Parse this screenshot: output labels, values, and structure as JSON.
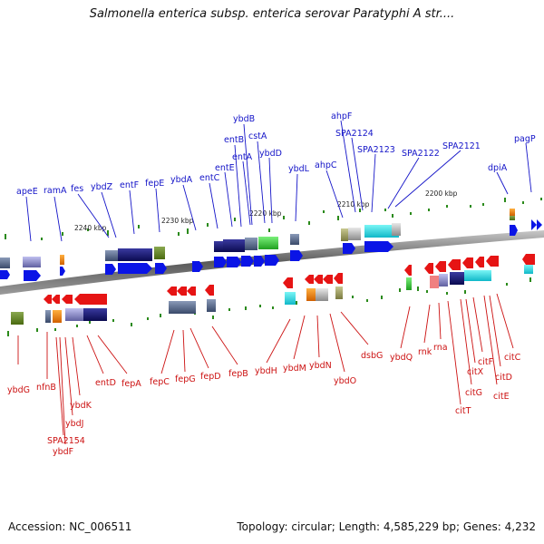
{
  "header": {
    "title": "Salmonella enterica subsp. enterica serovar Paratyphi A str...."
  },
  "footer": {
    "accession": "Accession: NC_006511",
    "summary": "Topology: circular; Length: 4,585,229 bp; Genes: 4,232"
  },
  "ruler": {
    "ticks": [
      {
        "label": "2240 kbp"
      },
      {
        "label": "2230 kbp"
      },
      {
        "label": "2220 kbp"
      },
      {
        "label": "2210 kbp"
      },
      {
        "label": "2200 kbp"
      }
    ]
  },
  "genes_top": [
    {
      "name": "apeE"
    },
    {
      "name": "ramA"
    },
    {
      "name": "fes"
    },
    {
      "name": "ybdZ"
    },
    {
      "name": "entF"
    },
    {
      "name": "fepE"
    },
    {
      "name": "ybdA"
    },
    {
      "name": "entC"
    },
    {
      "name": "entE"
    },
    {
      "name": "entB"
    },
    {
      "name": "entA"
    },
    {
      "name": "ybdB"
    },
    {
      "name": "cstA"
    },
    {
      "name": "ybdD"
    },
    {
      "name": "ybdL"
    },
    {
      "name": "ahpC"
    },
    {
      "name": "ahpF"
    },
    {
      "name": "SPA2124"
    },
    {
      "name": "SPA2123"
    },
    {
      "name": "SPA2122"
    },
    {
      "name": "SPA2121"
    },
    {
      "name": "dpiA"
    },
    {
      "name": "pagP"
    }
  ],
  "genes_bottom": [
    {
      "name": "ybdG"
    },
    {
      "name": "nfnB"
    },
    {
      "name": "SPA2154"
    },
    {
      "name": "ybdF"
    },
    {
      "name": "ybdJ"
    },
    {
      "name": "ybdK"
    },
    {
      "name": "entD"
    },
    {
      "name": "fepA"
    },
    {
      "name": "fepC"
    },
    {
      "name": "fepG"
    },
    {
      "name": "fepD"
    },
    {
      "name": "fepB"
    },
    {
      "name": "ybdH"
    },
    {
      "name": "ybdM"
    },
    {
      "name": "ybdN"
    },
    {
      "name": "ybdO"
    },
    {
      "name": "dsbG"
    },
    {
      "name": "ybdQ"
    },
    {
      "name": "rnk"
    },
    {
      "name": "rna"
    },
    {
      "name": "citT"
    },
    {
      "name": "citG"
    },
    {
      "name": "citX"
    },
    {
      "name": "citF"
    },
    {
      "name": "citE"
    },
    {
      "name": "citD"
    },
    {
      "name": "citC"
    }
  ],
  "colors": {
    "forward_gene": "#0a14e6",
    "reverse_gene": "#e61414",
    "top_label": "#1414c8",
    "bottom_label": "#cc1111",
    "backbone": "#7a7a7a",
    "gc_marks": "#2a8a1a"
  }
}
